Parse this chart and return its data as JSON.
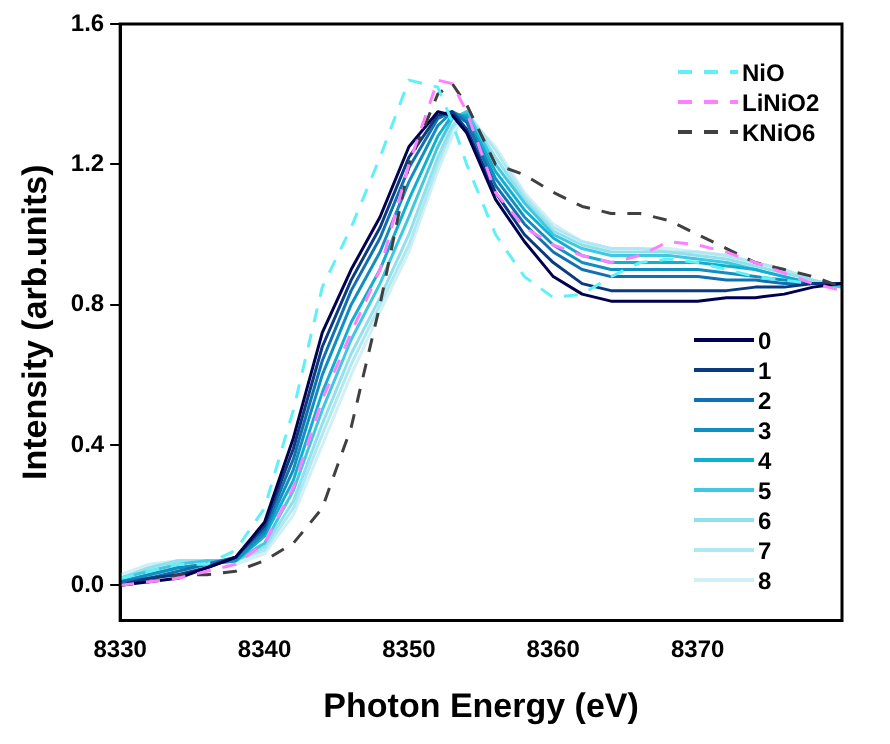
{
  "chart_data": {
    "type": "line",
    "xlabel": "Photon Energy (eV)",
    "ylabel": "Intensity (arb.units)",
    "x": [
      8330,
      8332,
      8334,
      8336,
      8338,
      8340,
      8342,
      8344,
      8346,
      8348,
      8350,
      8352,
      8353,
      8354,
      8356,
      8358,
      8360,
      8362,
      8364,
      8366,
      8368,
      8370,
      8372,
      8374,
      8376,
      8378,
      8380
    ],
    "xlim": [
      8330,
      8380
    ],
    "xticks": [
      8330,
      8340,
      8350,
      8360,
      8370
    ],
    "ylim": [
      -0.1,
      1.6
    ],
    "yticks": [
      {
        "value": 0,
        "label": "0.0"
      },
      0.4,
      0.8,
      1.2,
      1.6
    ],
    "grid": false,
    "legend": "right",
    "marker": "none",
    "series": [
      {
        "name": "NiO",
        "color": "#60f0f8",
        "line_style": "dashed",
        "values": [
          0.02,
          0.04,
          0.06,
          0.06,
          0.1,
          0.22,
          0.5,
          0.85,
          1.02,
          1.22,
          1.44,
          1.42,
          1.32,
          1.2,
          1.0,
          0.88,
          0.82,
          0.83,
          0.88,
          0.92,
          0.93,
          0.92,
          0.9,
          0.88,
          0.87,
          0.86,
          null
        ]
      },
      {
        "name": "LiNiO2",
        "color": "#ff80ff",
        "line_style": "dashed",
        "values": [
          0.0,
          0.01,
          0.02,
          0.04,
          0.06,
          0.12,
          0.28,
          0.53,
          0.72,
          0.9,
          1.2,
          1.44,
          1.43,
          1.35,
          1.12,
          1.02,
          0.97,
          0.94,
          0.92,
          0.94,
          0.98,
          0.97,
          0.95,
          0.92,
          0.89,
          0.86,
          0.84
        ]
      },
      {
        "name": "KNiO6",
        "color": "#404040",
        "line_style": "dashed",
        "values": [
          0.0,
          0.01,
          0.03,
          0.03,
          0.04,
          0.07,
          0.12,
          0.22,
          0.45,
          0.8,
          1.2,
          1.4,
          1.43,
          1.37,
          1.2,
          1.17,
          1.12,
          1.08,
          1.06,
          1.06,
          1.04,
          1.0,
          0.96,
          0.92,
          0.9,
          0.88,
          0.85
        ]
      },
      {
        "name": "0",
        "color": "#000050",
        "line_style": "solid",
        "values": [
          0.0,
          0.01,
          0.02,
          0.05,
          0.08,
          0.18,
          0.42,
          0.72,
          0.9,
          1.05,
          1.25,
          1.35,
          1.34,
          1.29,
          1.1,
          0.98,
          0.88,
          0.83,
          0.81,
          0.81,
          0.81,
          0.81,
          0.82,
          0.82,
          0.83,
          0.85,
          0.86
        ]
      },
      {
        "name": "1",
        "color": "#0a3a80",
        "line_style": "solid",
        "values": [
          0.0,
          0.02,
          0.03,
          0.05,
          0.08,
          0.17,
          0.39,
          0.68,
          0.87,
          1.02,
          1.22,
          1.34,
          1.35,
          1.3,
          1.12,
          1.0,
          0.92,
          0.86,
          0.84,
          0.84,
          0.84,
          0.84,
          0.84,
          0.85,
          0.85,
          0.86,
          0.86
        ]
      },
      {
        "name": "2",
        "color": "#1070b0",
        "line_style": "solid",
        "values": [
          0.01,
          0.02,
          0.04,
          0.06,
          0.08,
          0.16,
          0.36,
          0.64,
          0.84,
          0.99,
          1.19,
          1.33,
          1.35,
          1.32,
          1.14,
          1.03,
          0.95,
          0.9,
          0.88,
          0.88,
          0.88,
          0.88,
          0.87,
          0.87,
          0.86,
          0.86,
          0.86
        ]
      },
      {
        "name": "3",
        "color": "#1090c0",
        "line_style": "solid",
        "values": [
          0.01,
          0.03,
          0.05,
          0.06,
          0.07,
          0.15,
          0.33,
          0.6,
          0.8,
          0.95,
          1.15,
          1.31,
          1.35,
          1.33,
          1.16,
          1.05,
          0.97,
          0.92,
          0.9,
          0.9,
          0.9,
          0.9,
          0.89,
          0.88,
          0.87,
          0.86,
          0.86
        ]
      },
      {
        "name": "4",
        "color": "#10b0d0",
        "line_style": "solid",
        "values": [
          0.01,
          0.03,
          0.05,
          0.06,
          0.07,
          0.14,
          0.3,
          0.55,
          0.75,
          0.9,
          1.1,
          1.28,
          1.34,
          1.34,
          1.18,
          1.07,
          0.99,
          0.94,
          0.92,
          0.92,
          0.92,
          0.92,
          0.91,
          0.9,
          0.88,
          0.86,
          0.86
        ]
      },
      {
        "name": "5",
        "color": "#40c8e0",
        "line_style": "solid",
        "values": [
          0.02,
          0.04,
          0.06,
          0.07,
          0.07,
          0.12,
          0.27,
          0.5,
          0.7,
          0.86,
          1.05,
          1.25,
          1.33,
          1.35,
          1.2,
          1.09,
          1.0,
          0.96,
          0.94,
          0.94,
          0.94,
          0.93,
          0.92,
          0.9,
          0.88,
          0.86,
          0.85
        ]
      },
      {
        "name": "6",
        "color": "#90e0ee",
        "line_style": "solid",
        "values": [
          0.02,
          0.05,
          0.07,
          0.07,
          0.07,
          0.11,
          0.24,
          0.46,
          0.66,
          0.82,
          1.0,
          1.22,
          1.31,
          1.35,
          1.22,
          1.1,
          1.01,
          0.97,
          0.95,
          0.95,
          0.95,
          0.94,
          0.93,
          0.91,
          0.89,
          0.87,
          0.85
        ]
      },
      {
        "name": "7",
        "color": "#b0e8f2",
        "line_style": "solid",
        "values": [
          0.02,
          0.05,
          0.07,
          0.07,
          0.07,
          0.1,
          0.22,
          0.43,
          0.63,
          0.8,
          0.97,
          1.2,
          1.3,
          1.35,
          1.24,
          1.11,
          1.02,
          0.98,
          0.96,
          0.96,
          0.95,
          0.95,
          0.94,
          0.92,
          0.9,
          0.87,
          0.85
        ]
      },
      {
        "name": "8",
        "color": "#d0f0f6",
        "line_style": "solid",
        "values": [
          0.03,
          0.06,
          0.07,
          0.07,
          0.06,
          0.09,
          0.2,
          0.4,
          0.6,
          0.78,
          0.95,
          1.18,
          1.28,
          1.34,
          1.25,
          1.12,
          1.03,
          0.98,
          0.96,
          0.96,
          0.96,
          0.95,
          0.94,
          0.92,
          0.9,
          0.87,
          0.85
        ]
      }
    ]
  }
}
